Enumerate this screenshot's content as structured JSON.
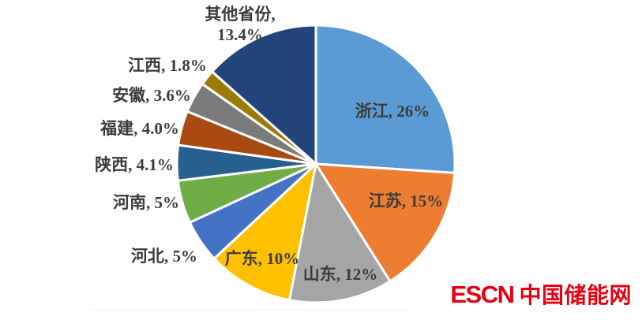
{
  "chart_data": {
    "type": "pie",
    "title": "",
    "unit": "%",
    "direction": "clockwise",
    "start_angle_deg": 0,
    "legend": "none",
    "background": "#FFFFFF",
    "label_text_color": "#3C3C3C",
    "slices": [
      {
        "label": "浙江",
        "value": 26,
        "display": "浙江, 26%",
        "color": "#5B9BD5",
        "label_placement": "inside"
      },
      {
        "label": "江苏",
        "value": 15,
        "display": "江苏, 15%",
        "color": "#ED7D31",
        "label_placement": "inside"
      },
      {
        "label": "山东",
        "value": 12,
        "display": "山东, 12%",
        "color": "#A5A5A5",
        "label_placement": "inside"
      },
      {
        "label": "广东",
        "value": 10,
        "display": "广东, 10%",
        "color": "#FFC000",
        "label_placement": "inside"
      },
      {
        "label": "河北",
        "value": 5,
        "display": "河北, 5%",
        "color": "#4472C4",
        "label_placement": "outside"
      },
      {
        "label": "河南",
        "value": 5,
        "display": "河南, 5%",
        "color": "#70AD47",
        "label_placement": "outside"
      },
      {
        "label": "陕西",
        "value": 4.1,
        "display": "陕西, 4.1%",
        "color": "#275F8F",
        "label_placement": "outside"
      },
      {
        "label": "福建",
        "value": 4.0,
        "display": "福建, 4.0%",
        "color": "#A84A12",
        "label_placement": "outside"
      },
      {
        "label": "安徽",
        "value": 3.6,
        "display": "安徽, 3.6%",
        "color": "#7B7B7B",
        "label_placement": "outside"
      },
      {
        "label": "江西",
        "value": 1.8,
        "display": "江西, 1.8%",
        "color": "#9C7A06",
        "label_placement": "outside"
      },
      {
        "label": "其他省份",
        "value": 13.4,
        "display": "其他省份, 13.4%",
        "display_lines": [
          "其他省份,",
          "13.4%"
        ],
        "color": "#24457C",
        "label_placement": "outside"
      }
    ]
  },
  "logo": {
    "text_en": "ESCN",
    "text_zh": "中国储能网",
    "color": "#E60012"
  }
}
